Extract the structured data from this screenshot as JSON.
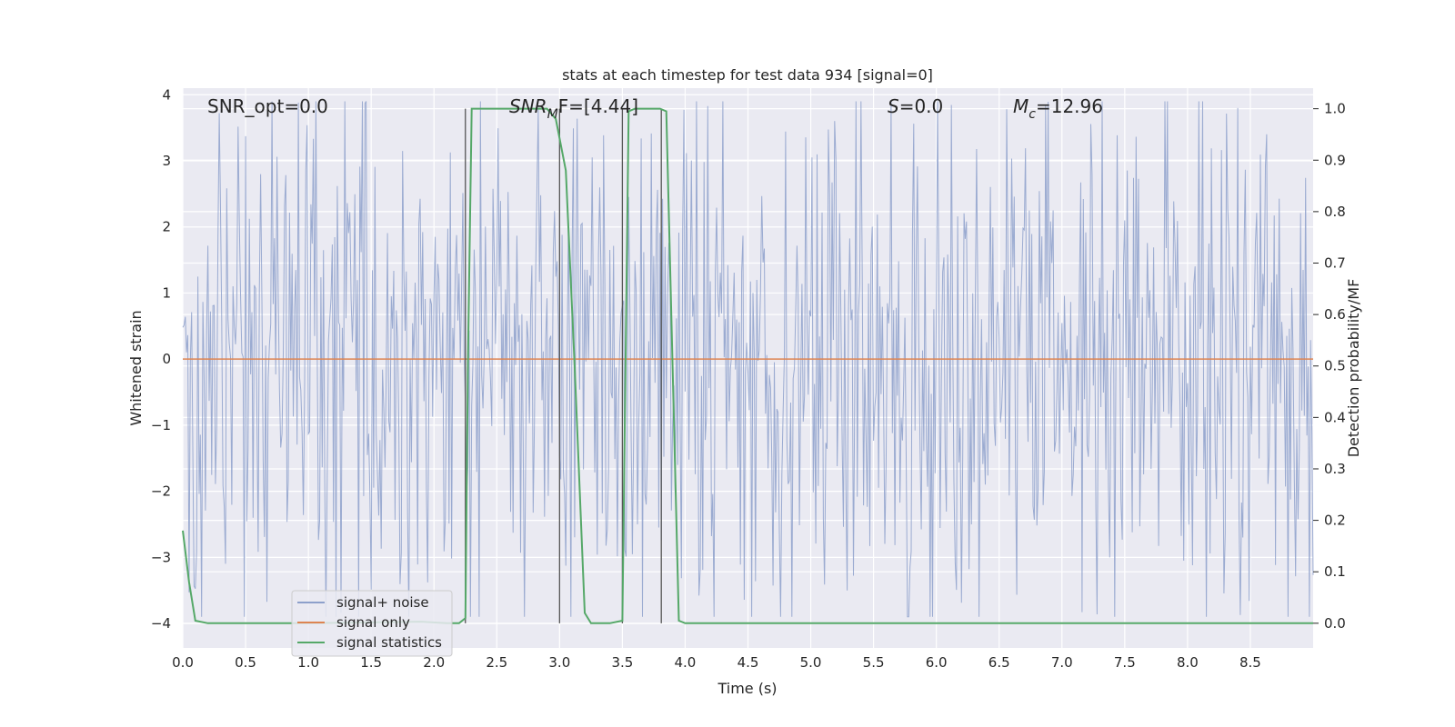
{
  "chart_data": {
    "type": "line",
    "title": "stats at each timestep for test data 934 [signal=0]",
    "xlabel": "Time (s)",
    "ylabel_left": "Whitened strain",
    "ylabel_right": "Detection probability/MF",
    "xlim": [
      0.0,
      9.0
    ],
    "ylim_left": [
      -4.37,
      4.1
    ],
    "ylim_right": [
      -0.048,
      1.04
    ],
    "x_ticks": [
      "0.0",
      "0.5",
      "1.0",
      "1.5",
      "2.0",
      "2.5",
      "3.0",
      "3.5",
      "4.0",
      "4.5",
      "5.0",
      "5.5",
      "6.0",
      "6.5",
      "7.0",
      "7.5",
      "8.0",
      "8.5"
    ],
    "x_tick_values": [
      0.0,
      0.5,
      1.0,
      1.5,
      2.0,
      2.5,
      3.0,
      3.5,
      4.0,
      4.5,
      5.0,
      5.5,
      6.0,
      6.5,
      7.0,
      7.5,
      8.0,
      8.5
    ],
    "y_left_ticks": [
      "4",
      "3",
      "2",
      "1",
      "0",
      "−1",
      "−2",
      "−3",
      "−4"
    ],
    "y_left_tick_values": [
      4,
      3,
      2,
      1,
      0,
      -1,
      -2,
      -3,
      -4
    ],
    "y_right_ticks": [
      "1.0",
      "0.9",
      "0.8",
      "0.7",
      "0.6",
      "0.5",
      "0.4",
      "0.3",
      "0.2",
      "0.1",
      "0.0"
    ],
    "y_right_tick_values": [
      1.0,
      0.9,
      0.8,
      0.7,
      0.6,
      0.5,
      0.4,
      0.3,
      0.2,
      0.1,
      0.0
    ],
    "grid": true,
    "legend_placement": "lower-left",
    "annotations": {
      "snr_opt": "SNR_opt=0.0",
      "snr_mf_sym": "SNR",
      "snr_mf_sub": "M",
      "snr_mf_rest": "F=[4.44]",
      "s_sym": "S",
      "s_rest": "=0.0",
      "mc_sym": "M",
      "mc_sub": "c",
      "mc_rest": "=12.96"
    },
    "series": [
      {
        "name": "signal+ noise",
        "color": "#8da0cb",
        "sample_rate": 100,
        "noise_abs_quantiles": {
          "median": 1.35,
          "p95": 2.2,
          "max": 3.9
        }
      },
      {
        "name": "signal only",
        "color": "#dd8452",
        "x": [
          0.0,
          9.0
        ],
        "y": [
          0.0,
          0.0
        ]
      },
      {
        "name": "signal statistics",
        "color": "#55a868",
        "x": [
          0.0,
          0.05,
          0.1,
          0.2,
          1.0,
          1.9,
          2.1,
          2.2,
          2.25,
          2.27,
          2.3,
          2.35,
          2.5,
          2.9,
          2.97,
          3.05,
          3.12,
          3.2,
          3.25,
          3.4,
          3.5,
          3.55,
          3.6,
          3.8,
          3.85,
          3.9,
          3.95,
          4.0,
          9.0
        ],
        "y": [
          0.18,
          0.08,
          0.005,
          0.0,
          0.0,
          0.003,
          0.0,
          0.0,
          0.01,
          0.5,
          1.0,
          1.0,
          1.0,
          1.0,
          0.98,
          0.88,
          0.5,
          0.02,
          0.0,
          0.0,
          0.005,
          0.995,
          1.0,
          1.0,
          0.995,
          0.5,
          0.005,
          0.0,
          0.0
        ]
      }
    ],
    "vertical_markers": [
      2.25,
      3.0,
      3.5,
      3.81
    ]
  }
}
